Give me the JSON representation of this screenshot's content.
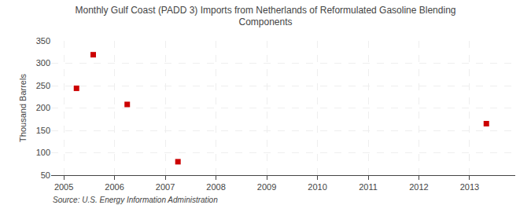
{
  "chart_data": {
    "type": "scatter",
    "title": "Monthly Gulf Coast (PADD 3) Imports from Netherlands of Reformulated Gasoline Blending\nComponents",
    "ylabel": "Thousand Barrels",
    "annotations": [
      "Source: U.S. Energy Information Administration"
    ],
    "x": [
      2005.25,
      2005.58,
      2006.25,
      2007.25,
      2013.33
    ],
    "values": [
      244,
      319,
      208,
      80,
      165
    ],
    "color": "#cc0000",
    "marker": "square",
    "xlim": [
      2004.75,
      2013.9
    ],
    "xticks": [
      2005,
      2006,
      2007,
      2008,
      2009,
      2010,
      2011,
      2012,
      2013
    ],
    "ylim": [
      50,
      350
    ],
    "yticks": [
      50,
      100,
      150,
      200,
      250,
      300,
      350
    ],
    "grid": true
  }
}
